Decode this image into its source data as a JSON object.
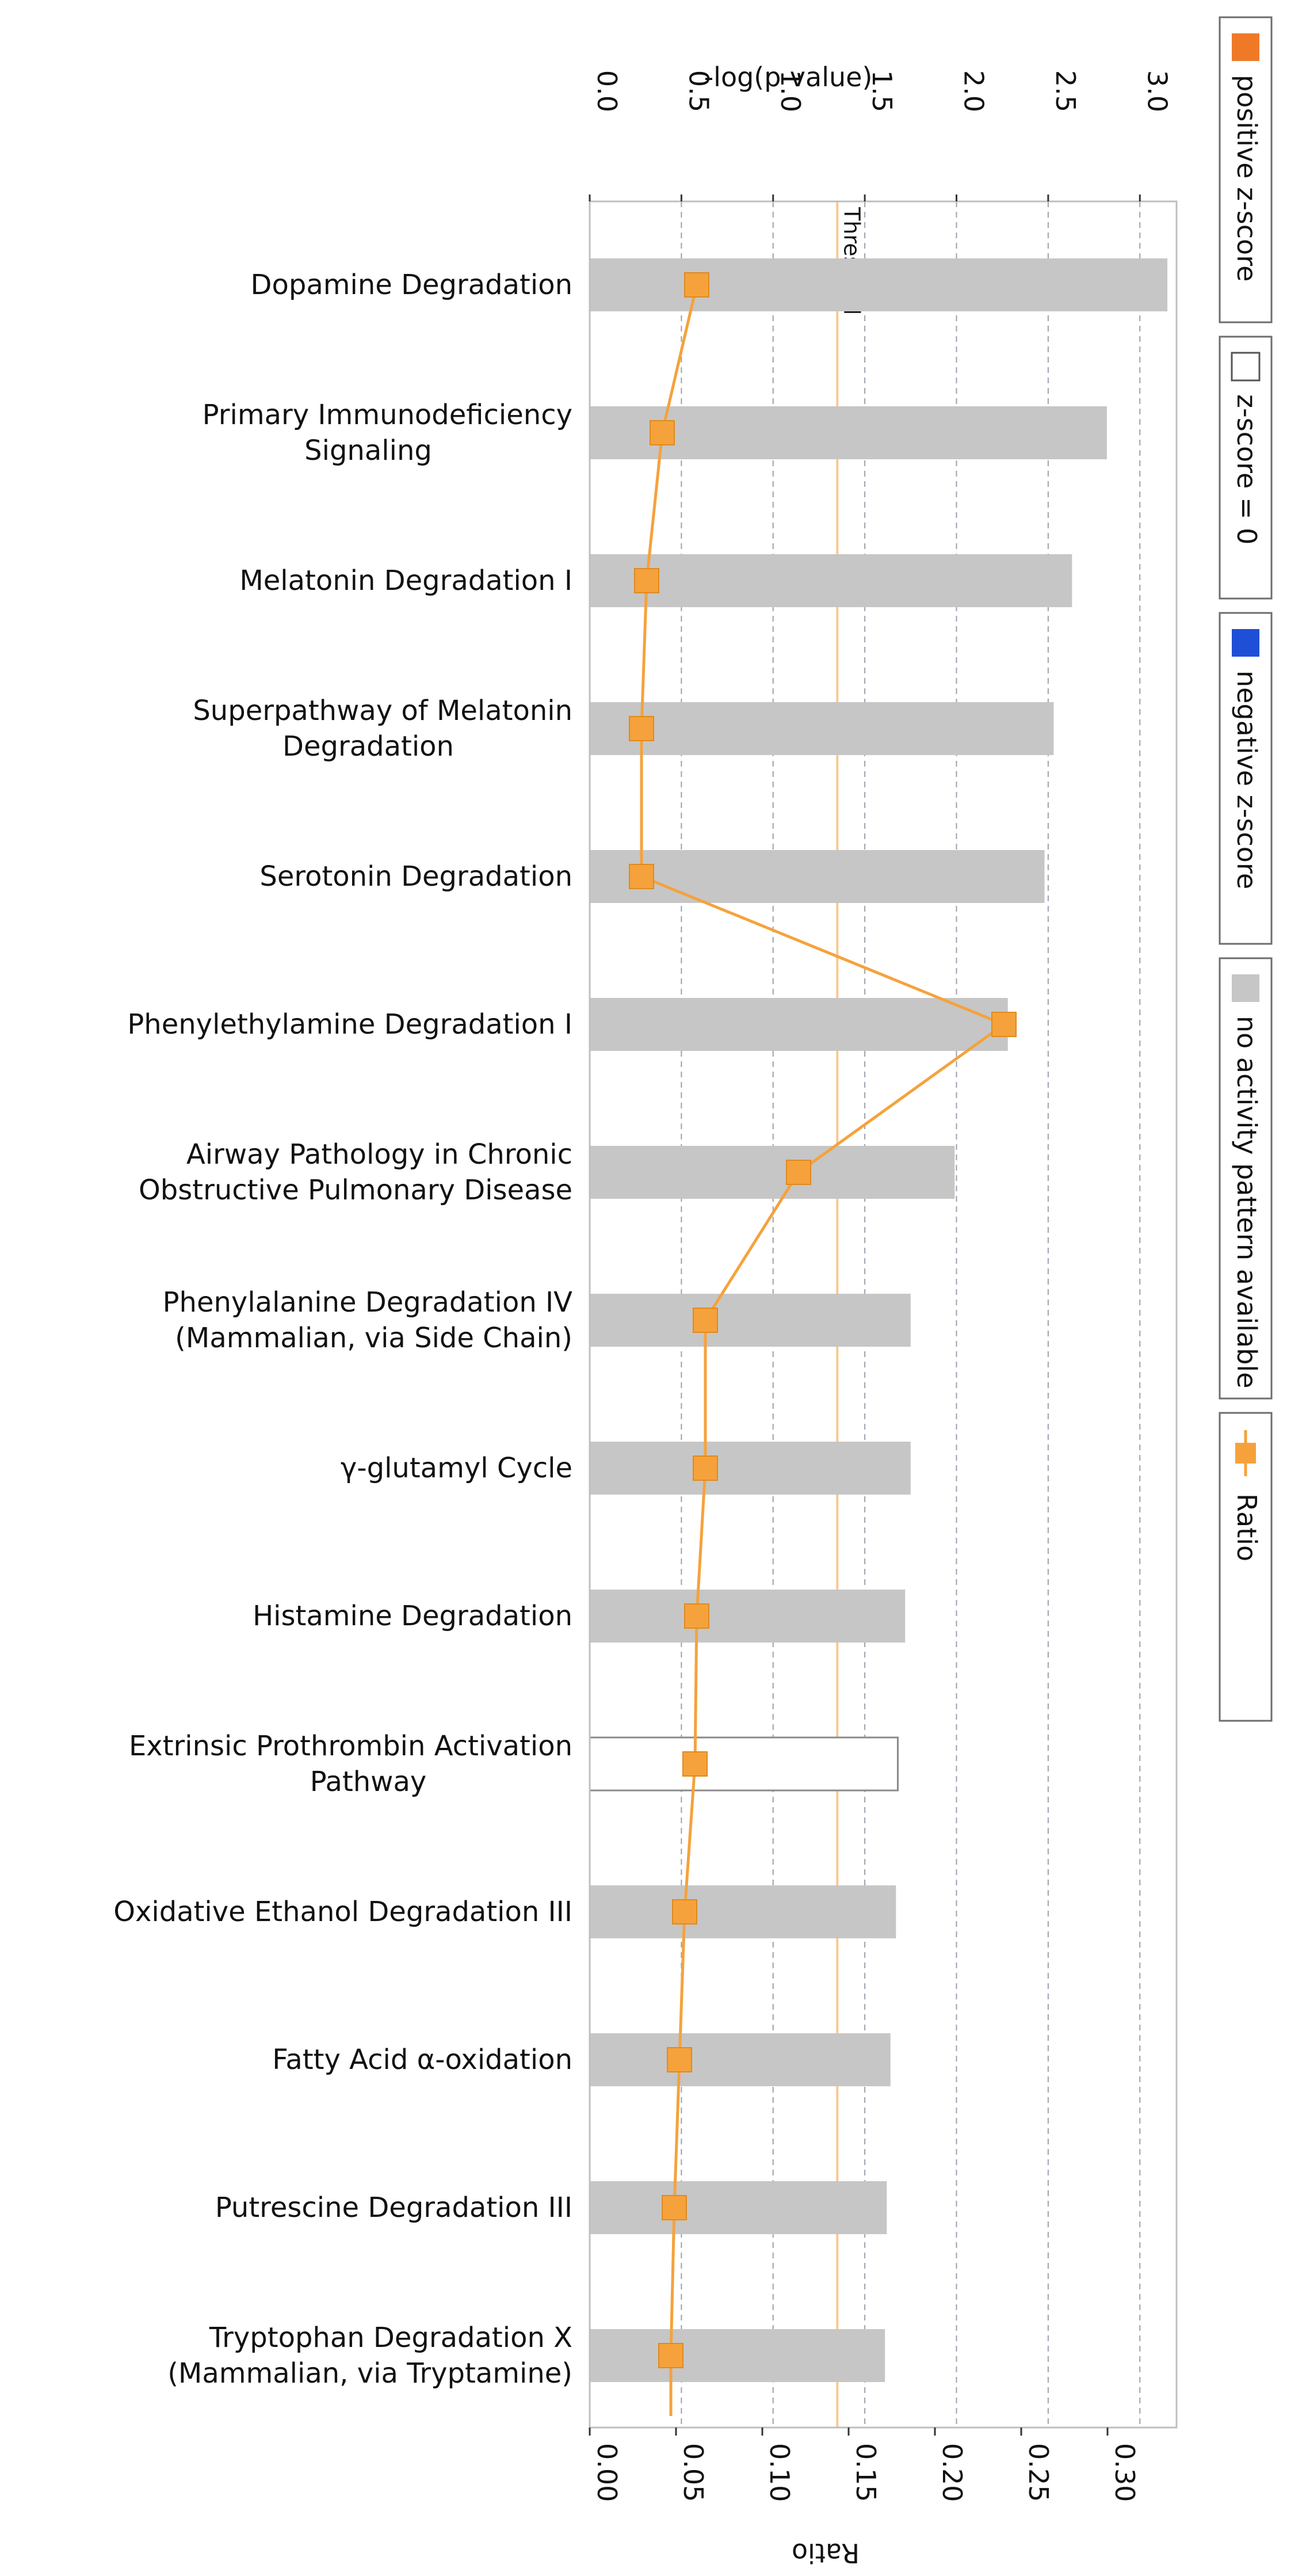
{
  "chart_data": {
    "type": "bar",
    "subtype": "horizontal bar with overlaid ratio line",
    "top_axis_label": "-log(p-value)",
    "bottom_axis_label": "Ratio",
    "top_axis_range": [
      0,
      3.2
    ],
    "top_axis_ticks": [
      "0.0",
      "0.5",
      "1.0",
      "1.5",
      "2.0",
      "2.5",
      "3.0"
    ],
    "top_axis_tick_values": [
      0,
      0.5,
      1.0,
      1.5,
      2.0,
      2.5,
      3.0
    ],
    "bottom_axis_range": [
      0,
      0.34
    ],
    "bottom_axis_ticks": [
      "0.00",
      "0.05",
      "0.10",
      "0.15",
      "0.20",
      "0.25",
      "0.30"
    ],
    "bottom_axis_tick_values": [
      0,
      0.05,
      0.1,
      0.15,
      0.2,
      0.25,
      0.3
    ],
    "threshold_label": "Threshold",
    "threshold_value": 1.35,
    "grid": "vertical dashed",
    "categories": [
      "Dopamine Degradation",
      "Primary Immunodeficiency Signaling",
      "Melatonin Degradation I",
      "Superpathway of Melatonin Degradation",
      "Serotonin Degradation",
      "Phenylethylamine Degradation I",
      "Airway Pathology in Chronic Obstructive Pulmonary Disease",
      "Phenylalanine Degradation IV (Mammalian, via Side Chain)",
      "γ-glutamyl Cycle",
      "Histamine Degradation",
      "Extrinsic Prothrombin Activation Pathway",
      "Oxidative Ethanol Degradation III",
      "Fatty Acid α-oxidation",
      "Putrescine Degradation III",
      "Tryptophan Degradation X (Mammalian, via Tryptamine)"
    ],
    "category_lines": [
      [
        "Dopamine Degradation"
      ],
      [
        "Primary Immunodeficiency",
        "Signaling"
      ],
      [
        "Melatonin Degradation I"
      ],
      [
        "Superpathway of Melatonin",
        "Degradation"
      ],
      [
        "Serotonin Degradation"
      ],
      [
        "Phenylethylamine Degradation I"
      ],
      [
        "Airway Pathology in Chronic",
        "Obstructive Pulmonary Disease"
      ],
      [
        "Phenylalanine Degradation IV",
        "(Mammalian, via Side Chain)"
      ],
      [
        "γ-glutamyl Cycle"
      ],
      [
        "Histamine Degradation"
      ],
      [
        "Extrinsic Prothrombin Activation",
        "Pathway"
      ],
      [
        "Oxidative Ethanol Degradation III"
      ],
      [
        "Fatty Acid α-oxidation"
      ],
      [
        "Putrescine Degradation III"
      ],
      [
        "Tryptophan Degradation X",
        "(Mammalian, via Tryptamine)"
      ]
    ],
    "series": [
      {
        "name": "-log(p-value)",
        "kind": "bar",
        "values": [
          3.15,
          2.82,
          2.63,
          2.53,
          2.48,
          2.28,
          1.99,
          1.75,
          1.75,
          1.72,
          1.68,
          1.67,
          1.64,
          1.62,
          1.61
        ],
        "bar_status": [
          "no activity pattern available",
          "no activity pattern available",
          "no activity pattern available",
          "no activity pattern available",
          "no activity pattern available",
          "no activity pattern available",
          "no activity pattern available",
          "no activity pattern available",
          "no activity pattern available",
          "no activity pattern available",
          "z-score = 0",
          "no activity pattern available",
          "no activity pattern available",
          "no activity pattern available",
          "no activity pattern available"
        ]
      },
      {
        "name": "Ratio",
        "kind": "line",
        "values": [
          0.062,
          0.042,
          0.033,
          0.03,
          0.03,
          0.24,
          0.121,
          0.067,
          0.067,
          0.062,
          0.061,
          0.055,
          0.052,
          0.049,
          0.047
        ],
        "tail_value": 0.047
      }
    ],
    "legend": [
      {
        "label": "positive z-score",
        "kind": "swatch",
        "color": "#ee7a28",
        "outlined": false
      },
      {
        "label": "z-score = 0",
        "kind": "swatch",
        "color": "#ffffff",
        "outlined": true
      },
      {
        "label": "negative z-score",
        "kind": "swatch",
        "color": "#1f4fd6",
        "outlined": false
      },
      {
        "label": "no activity pattern available",
        "kind": "swatch",
        "color": "#c6c6c6",
        "outlined": false
      },
      {
        "label": "Ratio",
        "kind": "line-marker",
        "color": "#f5a23c",
        "outlined": false
      }
    ],
    "legend_placement": "right, rotated",
    "colors": {
      "bar_grey": "#c6c6c6",
      "line": "#f5a23c",
      "threshold": "#f7c98e",
      "grid": "#9aa2ad",
      "positive": "#ee7a28",
      "negative": "#1f4fd6"
    }
  }
}
